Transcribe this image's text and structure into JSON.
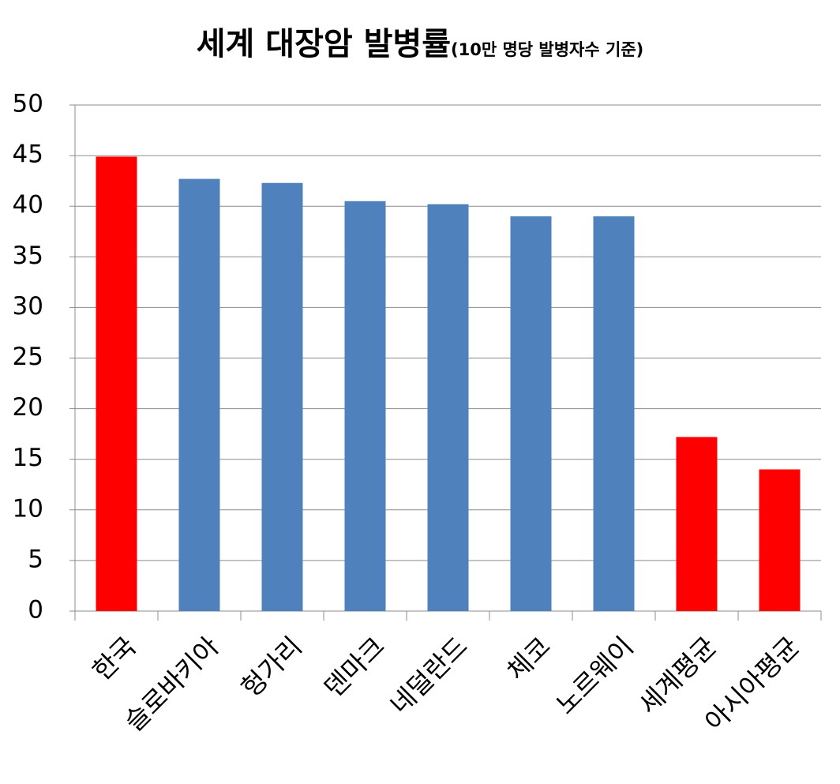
{
  "chart_data": {
    "type": "bar",
    "title": "세계 대장암 발병률",
    "subtitle": "(10만 명당 발병자수 기준)",
    "categories": [
      "한국",
      "슬로바키아",
      "헝가리",
      "덴마크",
      "네덜란드",
      "체코",
      "노르웨이",
      "세계평균",
      "아시아평균"
    ],
    "values": [
      44.9,
      42.7,
      42.3,
      40.5,
      40.2,
      39.0,
      39.0,
      17.2,
      14.0
    ],
    "colors": [
      "#ff0000",
      "#4f81bd",
      "#4f81bd",
      "#4f81bd",
      "#4f81bd",
      "#4f81bd",
      "#4f81bd",
      "#ff0000",
      "#ff0000"
    ],
    "ylim": [
      0,
      50
    ],
    "yticks": [
      0,
      5,
      10,
      15,
      20,
      25,
      30,
      35,
      40,
      45,
      50
    ],
    "grid": true
  }
}
